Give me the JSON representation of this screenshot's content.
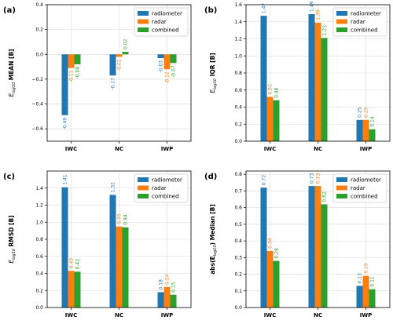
{
  "colors": {
    "radiometer": "#1f77b4",
    "radar": "#ff7f0e",
    "combined": "#2ca02c"
  },
  "chart_data": [
    {
      "type": "bar",
      "panel": "(a)",
      "ylabel": "E_log10 MEAN [B]",
      "ylabel_base": "E",
      "ylabel_sub": "log10",
      "ylabel_rest": " MEAN [B]",
      "categories": [
        "IWC",
        "NC",
        "IWP"
      ],
      "series": [
        {
          "name": "radiometer",
          "values": [
            -0.49,
            -0.17,
            -0.03
          ],
          "labels": [
            "-0.49",
            "-0.17",
            "-0.03"
          ]
        },
        {
          "name": "radar",
          "values": [
            -0.11,
            -0.02,
            -0.12
          ],
          "labels": [
            "-0.11",
            "-0.02",
            "-0.12"
          ]
        },
        {
          "name": "combined",
          "values": [
            -0.08,
            0.02,
            -0.07
          ],
          "labels": [
            "-0.08",
            "0.02",
            "-0.07"
          ]
        }
      ],
      "ylim": [
        -0.7,
        0.4
      ],
      "yticks": [
        -0.6,
        -0.4,
        -0.2,
        0.0,
        0.2,
        0.4
      ],
      "ytick_labels": [
        "−0.6",
        "−0.4",
        "−0.2",
        "0.0",
        "0.2",
        "0.4"
      ],
      "grid": true,
      "legend": "top-right"
    },
    {
      "type": "bar",
      "panel": "(b)",
      "ylabel": "E_log10 IQR [B]",
      "ylabel_base": "E",
      "ylabel_sub": "log10",
      "ylabel_rest": " IQR [B]",
      "categories": [
        "IWC",
        "NC",
        "IWP"
      ],
      "series": [
        {
          "name": "radiometer",
          "values": [
            1.47,
            1.49,
            0.25
          ],
          "labels": [
            "1.47",
            "1.49",
            "0.25"
          ]
        },
        {
          "name": "radar",
          "values": [
            0.52,
            1.39,
            0.25
          ],
          "labels": [
            "0.52",
            "1.39",
            "0.25"
          ]
        },
        {
          "name": "combined",
          "values": [
            0.48,
            1.21,
            0.14
          ],
          "labels": [
            "0.48",
            "1.21",
            "0.14"
          ]
        }
      ],
      "ylim": [
        0,
        1.6
      ],
      "yticks": [
        0.0,
        0.2,
        0.4,
        0.6,
        0.8,
        1.0,
        1.2,
        1.4,
        1.6
      ],
      "ytick_labels": [
        "0.0",
        "0.2",
        "0.4",
        "0.6",
        "0.8",
        "1.0",
        "1.2",
        "1.4",
        "1.6"
      ],
      "grid": true,
      "legend": "top-right"
    },
    {
      "type": "bar",
      "panel": "(c)",
      "ylabel": "E_log10 RMSD [B]",
      "ylabel_base": "E",
      "ylabel_sub": "log10",
      "ylabel_rest": " RMSD [B]",
      "categories": [
        "IWC",
        "NC",
        "IWP"
      ],
      "series": [
        {
          "name": "radiometer",
          "values": [
            1.41,
            1.32,
            0.18
          ],
          "labels": [
            "1.41",
            "1.32",
            "0.18"
          ]
        },
        {
          "name": "radar",
          "values": [
            0.43,
            0.95,
            0.24
          ],
          "labels": [
            "0.43",
            "0.95",
            "0.24"
          ]
        },
        {
          "name": "combined",
          "values": [
            0.42,
            0.94,
            0.15
          ],
          "labels": [
            "0.42",
            "0.94",
            "0.15"
          ]
        }
      ],
      "ylim": [
        0,
        1.6
      ],
      "yticks": [
        0.0,
        0.2,
        0.4,
        0.6,
        0.8,
        1.0,
        1.2,
        1.4
      ],
      "ytick_labels": [
        "0.0",
        "0.2",
        "0.4",
        "0.6",
        "0.8",
        "1.0",
        "1.2",
        "1.4"
      ],
      "grid": true,
      "legend": "top-right"
    },
    {
      "type": "bar",
      "panel": "(d)",
      "ylabel": "abs(E_log10) Median [B]",
      "ylabel_base": "abs(E",
      "ylabel_sub": "log10",
      "ylabel_rest": ") Median [B]",
      "categories": [
        "IWC",
        "NC",
        "IWP"
      ],
      "series": [
        {
          "name": "radiometer",
          "values": [
            0.72,
            0.73,
            0.13
          ],
          "labels": [
            "0.72",
            "0.73",
            "0.13"
          ]
        },
        {
          "name": "radar",
          "values": [
            0.34,
            0.73,
            0.19
          ],
          "labels": [
            "0.34",
            "0.73",
            "0.19"
          ]
        },
        {
          "name": "combined",
          "values": [
            0.28,
            0.62,
            0.11
          ],
          "labels": [
            "0.28",
            "0.62",
            "0.11"
          ]
        }
      ],
      "ylim": [
        0,
        0.82
      ],
      "yticks": [
        0.0,
        0.1,
        0.2,
        0.3,
        0.4,
        0.5,
        0.6,
        0.7,
        0.8
      ],
      "ytick_labels": [
        "0.0",
        "0.1",
        "0.2",
        "0.3",
        "0.4",
        "0.5",
        "0.6",
        "0.7",
        "0.8"
      ],
      "grid": true,
      "legend": "top-right"
    }
  ]
}
